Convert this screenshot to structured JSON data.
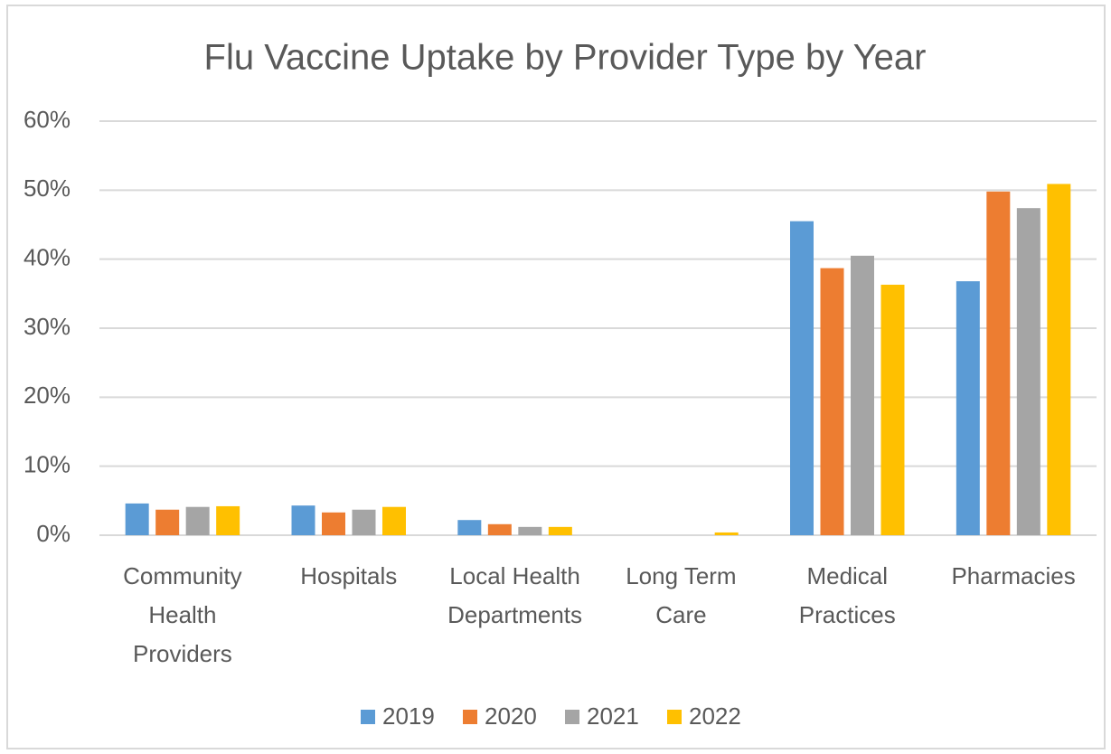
{
  "chart_data": {
    "type": "bar",
    "title": "Flu Vaccine Uptake by Provider Type by Year",
    "categories": [
      "Community Health Providers",
      "Hospitals",
      "Local Health Departments",
      "Long Term Care",
      "Medical Practices",
      "Pharmacies"
    ],
    "series": [
      {
        "name": "2019",
        "color": "#5b9bd5",
        "values": [
          4.6,
          4.3,
          2.2,
          0,
          45.5,
          36.8
        ]
      },
      {
        "name": "2020",
        "color": "#ed7d31",
        "values": [
          3.7,
          3.3,
          1.6,
          0,
          38.7,
          49.8
        ]
      },
      {
        "name": "2021",
        "color": "#a5a5a5",
        "values": [
          4.1,
          3.7,
          1.2,
          0,
          40.5,
          47.4
        ]
      },
      {
        "name": "2022",
        "color": "#ffc000",
        "values": [
          4.2,
          4.1,
          1.2,
          0.4,
          36.3,
          50.9
        ]
      }
    ],
    "ylim": [
      0,
      60
    ],
    "yticks": [
      {
        "value": 0,
        "label": "0%"
      },
      {
        "value": 10,
        "label": "10%"
      },
      {
        "value": 20,
        "label": "20%"
      },
      {
        "value": 30,
        "label": "30%"
      },
      {
        "value": 40,
        "label": "40%"
      },
      {
        "value": 50,
        "label": "50%"
      },
      {
        "value": 60,
        "label": "60%"
      }
    ],
    "grid": true,
    "legend": "bottom"
  }
}
